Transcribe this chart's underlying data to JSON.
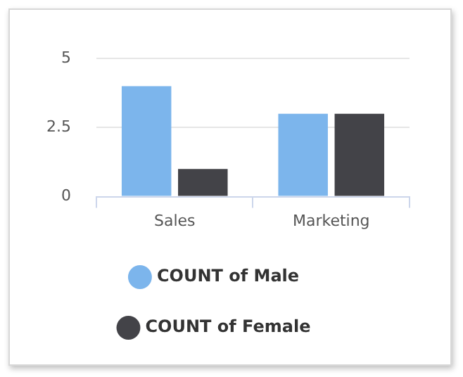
{
  "chart_data": {
    "type": "bar",
    "categories": [
      "Sales",
      "Marketing"
    ],
    "series": [
      {
        "name": "COUNT of Male",
        "color": "#7cb5ec",
        "values": [
          4,
          3
        ]
      },
      {
        "name": "COUNT of Female",
        "color": "#434348",
        "values": [
          1,
          3
        ]
      }
    ],
    "ylim": [
      0,
      5
    ],
    "yticks": [
      0,
      2.5,
      5
    ],
    "grid": "y",
    "legend": "bottom",
    "marker": "circle"
  }
}
